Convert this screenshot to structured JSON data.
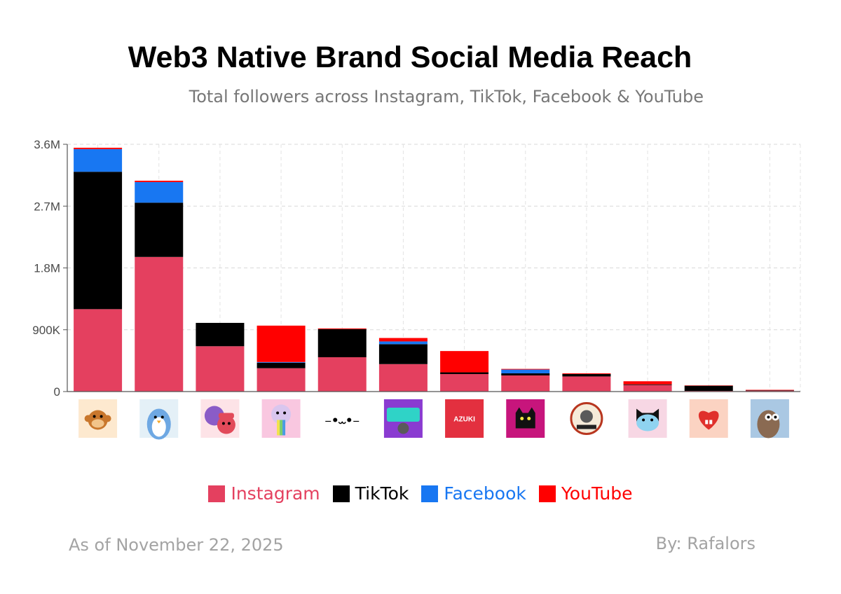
{
  "title": "Web3 Native Brand Social Media Reach",
  "subtitle": "Total followers across Instagram, TikTok, Facebook & YouTube",
  "footer": {
    "date": "As of November 22, 2025",
    "author": "By: Rafalors"
  },
  "legend": [
    {
      "name": "Instagram",
      "color": "#e4405f"
    },
    {
      "name": "TikTok",
      "color": "#000000"
    },
    {
      "name": "Facebook",
      "color": "#1877f2"
    },
    {
      "name": "YouTube",
      "color": "#ff0000"
    }
  ],
  "brand_logos": [
    {
      "icon": "monkey-pixel-icon",
      "bg": "#fde9cf"
    },
    {
      "icon": "penguin-icon",
      "bg": "#e4f0f7"
    },
    {
      "icon": "purple-octopus-icon",
      "bg": "#fde3e7"
    },
    {
      "icon": "rainbow-face-icon",
      "bg": "#f9c7e0"
    },
    {
      "icon": "cat-face-icon",
      "bg": "#ffffff"
    },
    {
      "icon": "claynosaurz-icon",
      "bg": "#8a3bd1"
    },
    {
      "icon": "azuki-icon",
      "bg": "#e3303f",
      "text": "AZUKI"
    },
    {
      "icon": "black-cat-icon",
      "bg": "#c7157c"
    },
    {
      "icon": "sad-times-icon",
      "bg": "#ffffff"
    },
    {
      "icon": "cartoon-cat-icon",
      "bg": "#f7d7e4"
    },
    {
      "icon": "red-heart-icon",
      "bg": "#fbd3c2"
    },
    {
      "icon": "brown-creature-icon",
      "bg": "#aac8e3"
    }
  ],
  "chart_data": {
    "type": "bar",
    "stacked": true,
    "ylim": [
      0,
      3600000
    ],
    "yticks": [
      {
        "value": 0,
        "label": "0"
      },
      {
        "value": 900000,
        "label": "900K"
      },
      {
        "value": 1800000,
        "label": "1.8M"
      },
      {
        "value": 2700000,
        "label": "2.7M"
      },
      {
        "value": 3600000,
        "label": "3.6M"
      }
    ],
    "grid": true,
    "legend_position": "bottom",
    "series": [
      {
        "name": "Instagram",
        "color": "#e4405f",
        "values": [
          1200000,
          1960000,
          660000,
          340000,
          500000,
          400000,
          255000,
          235000,
          220000,
          95000,
          10000,
          15000
        ]
      },
      {
        "name": "TikTok",
        "color": "#000000",
        "values": [
          2000000,
          790000,
          340000,
          80000,
          410000,
          290000,
          25000,
          30000,
          35000,
          10000,
          75000,
          5000
        ]
      },
      {
        "name": "Facebook",
        "color": "#1877f2",
        "values": [
          330000,
          300000,
          0,
          10000,
          0,
          40000,
          0,
          55000,
          0,
          0,
          0,
          0
        ]
      },
      {
        "name": "YouTube",
        "color": "#ff0000",
        "values": [
          20000,
          20000,
          0,
          530000,
          10000,
          50000,
          310000,
          10000,
          10000,
          45000,
          5000,
          5000
        ]
      }
    ]
  }
}
